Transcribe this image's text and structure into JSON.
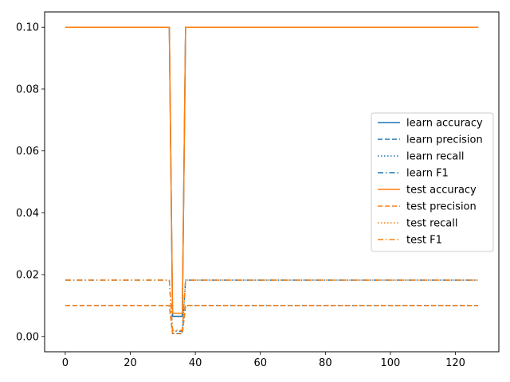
{
  "chart_data": {
    "type": "line",
    "title": "",
    "xlabel": "",
    "ylabel": "",
    "xlim": [
      -6.35,
      133.35
    ],
    "ylim": [
      -0.00495,
      0.10495
    ],
    "xticks": [
      0,
      20,
      40,
      60,
      80,
      100,
      120
    ],
    "yticks": [
      0.0,
      0.02,
      0.04,
      0.06,
      0.08,
      0.1
    ],
    "ytick_labels": [
      "0.00",
      "0.02",
      "0.04",
      "0.06",
      "0.08",
      "0.10"
    ],
    "xtick_labels": [
      "0",
      "20",
      "40",
      "60",
      "80",
      "100",
      "120"
    ],
    "grid": false,
    "legend_position": "center-right",
    "series": [
      {
        "name": "learn accuracy",
        "color": "#1f77b4",
        "style": "solid",
        "x": [
          0,
          32,
          33,
          36,
          37,
          127
        ],
        "y": [
          0.1,
          0.1,
          0.0065,
          0.0065,
          0.1,
          0.1
        ]
      },
      {
        "name": "learn precision",
        "color": "#1f77b4",
        "style": "dashed",
        "x": [
          0,
          32,
          33,
          36,
          37,
          127
        ],
        "y": [
          0.01,
          0.01,
          0.0009,
          0.0009,
          0.01,
          0.01
        ]
      },
      {
        "name": "learn recall",
        "color": "#1f77b4",
        "style": "dotted",
        "x": [
          0,
          32,
          33,
          36,
          37,
          127
        ],
        "y": [
          0.1,
          0.1,
          0.0065,
          0.0065,
          0.1,
          0.1
        ]
      },
      {
        "name": "learn F1",
        "color": "#1f77b4",
        "style": "dashdot",
        "x": [
          0,
          32,
          33,
          36,
          37,
          127
        ],
        "y": [
          0.0182,
          0.0182,
          0.0017,
          0.0017,
          0.0182,
          0.0182
        ]
      },
      {
        "name": "test accuracy",
        "color": "#ff7f0e",
        "style": "solid",
        "x": [
          0,
          32,
          33,
          36,
          37,
          127
        ],
        "y": [
          0.1,
          0.1,
          0.0075,
          0.0075,
          0.1,
          0.1
        ]
      },
      {
        "name": "test precision",
        "color": "#ff7f0e",
        "style": "dashed",
        "x": [
          0,
          32,
          33,
          36,
          37,
          127
        ],
        "y": [
          0.01,
          0.01,
          0.001,
          0.001,
          0.01,
          0.01
        ]
      },
      {
        "name": "test recall",
        "color": "#ff7f0e",
        "style": "dotted",
        "x": [
          0,
          32,
          33,
          36,
          37,
          127
        ],
        "y": [
          0.1,
          0.1,
          0.0075,
          0.0075,
          0.1,
          0.1
        ]
      },
      {
        "name": "test F1",
        "color": "#ff7f0e",
        "style": "dashdot",
        "x": [
          0,
          32,
          33,
          36,
          37,
          127
        ],
        "y": [
          0.0182,
          0.0182,
          0.002,
          0.002,
          0.0182,
          0.0182
        ]
      }
    ]
  }
}
